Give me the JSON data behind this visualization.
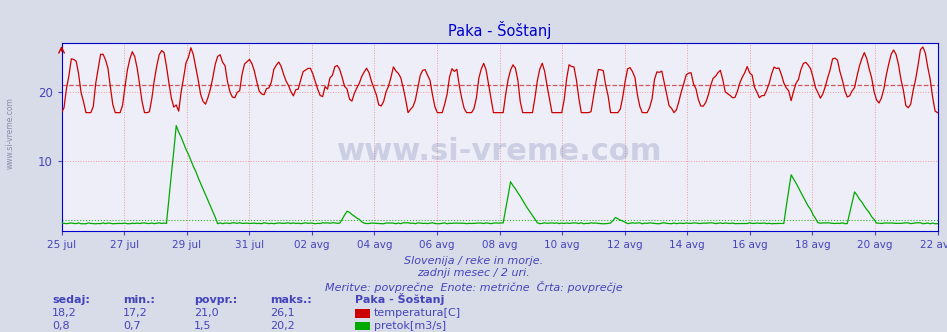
{
  "title": "Paka - Šoštanj",
  "title_color": "#0000cc",
  "bg_color": "#d8dce8",
  "plot_bg_color": "#eeeef8",
  "grid_color": "#ee9999",
  "grid_style": ":",
  "n_points": 360,
  "temp_avg": 21.0,
  "flow_avg": 1.5,
  "y_min": 0,
  "y_max": 27,
  "y_ticks": [
    10,
    20
  ],
  "temp_color": "#cc0000",
  "flow_color": "#00aa00",
  "avg_line_color_temp": "#cc3333",
  "avg_line_color_flow": "#00aa00",
  "x_tick_labels": [
    "25 jul",
    "27 jul",
    "29 jul",
    "31 jul",
    "02 avg",
    "04 avg",
    "06 avg",
    "08 avg",
    "10 avg",
    "12 avg",
    "14 avg",
    "16 avg",
    "18 avg",
    "20 avg",
    "22 avg"
  ],
  "subtitle1": "Slovenija / reke in morje.",
  "subtitle2": "zadnji mesec / 2 uri.",
  "subtitle3": "Meritve: povprečne  Enote: metrične  Črta: povprečje",
  "footer_color": "#4444bb",
  "label_color": "#4444bb",
  "border_color": "#3333bb",
  "watermark": "www.si-vreme.com",
  "station_label": "Paka - Šoštanj",
  "legend_temp": "temperatura[C]",
  "legend_flow": "pretok[m3/s]",
  "table_headers": [
    "sedaj:",
    "min.:",
    "povpr.:",
    "maks.:"
  ],
  "table_temp": [
    "18,2",
    "17,2",
    "21,0",
    "26,1"
  ],
  "table_flow": [
    "0,8",
    "0,7",
    "1,5",
    "20,2"
  ],
  "left_margin_text": "www.si-vreme.com",
  "spine_color": "#0000cc",
  "arrow_color": "#cc0000"
}
